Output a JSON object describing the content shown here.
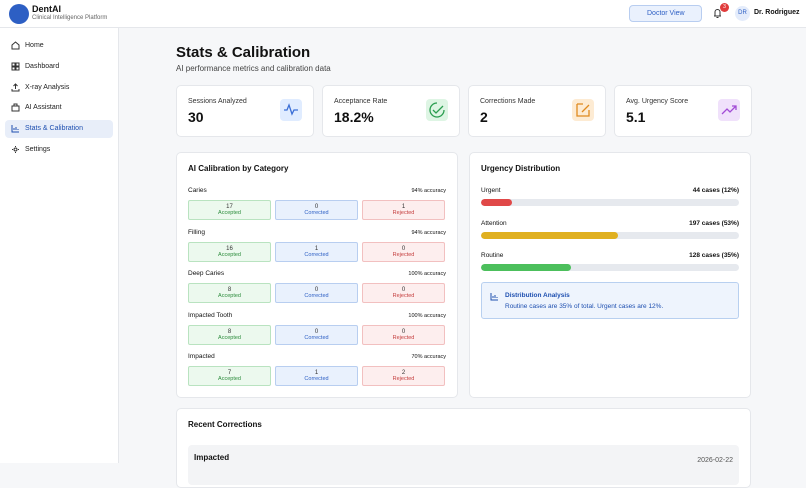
{
  "app": {
    "name": "DentAI",
    "tagline": "Clinical Intelligence Platform"
  },
  "topbar": {
    "view": "Doctor View",
    "notifications": "3",
    "avatar": "DR",
    "user": "Dr. Rodriguez"
  },
  "nav": [
    "Home",
    "Dashboard",
    "X-ray Analysis",
    "AI Assistant",
    "Stats & Calibration",
    "Settings"
  ],
  "page": {
    "title": "Stats & Calibration",
    "subtitle": "AI performance metrics and calibration data"
  },
  "stats": [
    {
      "label": "Sessions Analyzed",
      "value": "30"
    },
    {
      "label": "Acceptance Rate",
      "value": "18.2%"
    },
    {
      "label": "Corrections Made",
      "value": "2"
    },
    {
      "label": "Avg. Urgency Score",
      "value": "5.1"
    }
  ],
  "calibration": {
    "title": "AI Calibration by Category",
    "labels": {
      "accepted": "Accepted",
      "corrected": "Corrected",
      "rejected": "Rejected"
    },
    "categories": [
      {
        "name": "Caries",
        "accuracy": "94% accuracy",
        "accepted": 17,
        "corrected": 0,
        "rejected": 1
      },
      {
        "name": "Filling",
        "accuracy": "94% accuracy",
        "accepted": 16,
        "corrected": 1,
        "rejected": 0
      },
      {
        "name": "Deep Caries",
        "accuracy": "100% accuracy",
        "accepted": 8,
        "corrected": 0,
        "rejected": 0
      },
      {
        "name": "Impacted Tooth",
        "accuracy": "100% accuracy",
        "accepted": 8,
        "corrected": 0,
        "rejected": 0
      },
      {
        "name": "Impacted",
        "accuracy": "70% accuracy",
        "accepted": 7,
        "corrected": 1,
        "rejected": 2
      }
    ]
  },
  "urgency": {
    "title": "Urgency Distribution",
    "rows": [
      {
        "name": "Urgent",
        "label": "44 cases (12%)",
        "percent": 12,
        "color": "#e04848"
      },
      {
        "name": "Attention",
        "label": "197 cases (53%)",
        "percent": 53,
        "color": "#e0b020"
      },
      {
        "name": "Routine",
        "label": "128 cases (35%)",
        "percent": 35,
        "color": "#4cbf5c"
      }
    ],
    "analysis": {
      "title": "Distribution Analysis",
      "text": "Routine cases are 35% of total. Urgent cases are 12%."
    }
  },
  "corrections": {
    "title": "Recent Corrections",
    "items": [
      {
        "name": "Impacted",
        "date": "2026-02-22"
      }
    ]
  }
}
